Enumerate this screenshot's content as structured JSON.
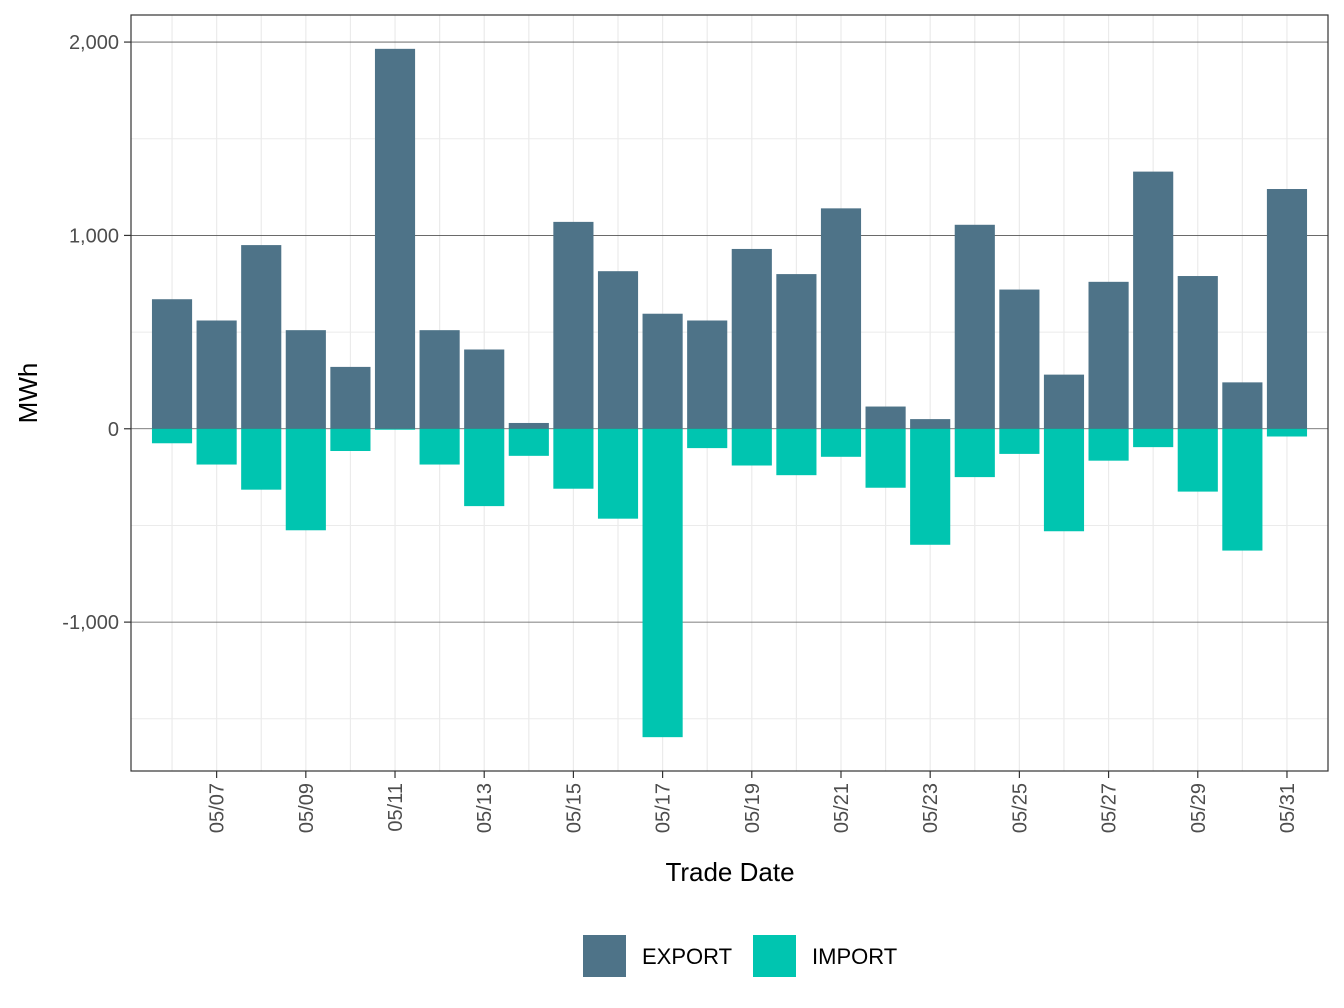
{
  "chart_data": {
    "type": "bar",
    "xlabel": "Trade Date",
    "ylabel": "MWh",
    "ylim": [
      -1770,
      2140
    ],
    "y_ticks": [
      -1000,
      0,
      1000,
      2000
    ],
    "y_tick_labels": [
      "-1,000",
      "0",
      "1,000",
      "2,000"
    ],
    "x_tick_labels": [
      "05/07",
      "05/09",
      "05/11",
      "05/13",
      "05/15",
      "05/17",
      "05/19",
      "05/21",
      "05/23",
      "05/25",
      "05/27",
      "05/29",
      "05/31"
    ],
    "x_tick_days": [
      7,
      9,
      11,
      13,
      15,
      17,
      19,
      21,
      23,
      25,
      27,
      29,
      31
    ],
    "x_range_days": [
      5.08,
      31.92
    ],
    "categories": [
      "05/06",
      "05/07",
      "05/08",
      "05/09",
      "05/10",
      "05/11",
      "05/12",
      "05/13",
      "05/14",
      "05/15",
      "05/16",
      "05/17",
      "05/18",
      "05/19",
      "05/20",
      "05/21",
      "05/22",
      "05/23",
      "05/24",
      "05/25",
      "05/26",
      "05/27",
      "05/28",
      "05/29",
      "05/30",
      "05/31"
    ],
    "series": [
      {
        "name": "EXPORT",
        "color": "#4e7388",
        "values": [
          670,
          560,
          950,
          510,
          320,
          1965,
          510,
          410,
          30,
          1070,
          815,
          595,
          560,
          930,
          800,
          1140,
          115,
          50,
          1055,
          720,
          280,
          760,
          1330,
          790,
          240,
          1240
        ]
      },
      {
        "name": "IMPORT",
        "color": "#00c5b0",
        "values": [
          -75,
          -185,
          -315,
          -525,
          -115,
          -5,
          -185,
          -400,
          -140,
          -310,
          -465,
          -1595,
          -100,
          -190,
          -240,
          -145,
          -305,
          -600,
          -250,
          -130,
          -530,
          -165,
          -95,
          -325,
          -630,
          -40
        ]
      }
    ],
    "grid": true,
    "legend_position": "bottom"
  },
  "legend": {
    "items": [
      {
        "label": "EXPORT",
        "color": "#4e7388"
      },
      {
        "label": "IMPORT",
        "color": "#00c5b0"
      }
    ]
  }
}
